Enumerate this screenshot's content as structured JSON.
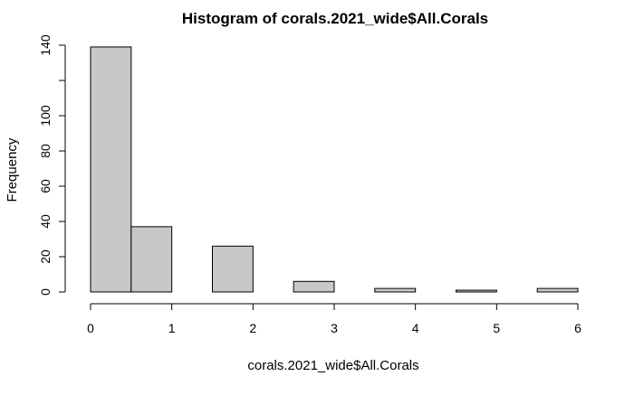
{
  "chart_data": {
    "type": "bar",
    "title": "Histogram of corals.2021_wide$All.Corals",
    "xlabel": "corals.2021_wide$All.Corals",
    "ylabel": "Frequency",
    "bins": [
      {
        "start": 0.0,
        "end": 0.5,
        "count": 139
      },
      {
        "start": 0.5,
        "end": 1.0,
        "count": 37
      },
      {
        "start": 1.0,
        "end": 1.5,
        "count": 0
      },
      {
        "start": 1.5,
        "end": 2.0,
        "count": 26
      },
      {
        "start": 2.0,
        "end": 2.5,
        "count": 0
      },
      {
        "start": 2.5,
        "end": 3.0,
        "count": 6
      },
      {
        "start": 3.0,
        "end": 3.5,
        "count": 0
      },
      {
        "start": 3.5,
        "end": 4.0,
        "count": 2
      },
      {
        "start": 4.0,
        "end": 4.5,
        "count": 0
      },
      {
        "start": 4.5,
        "end": 5.0,
        "count": 1
      },
      {
        "start": 5.0,
        "end": 5.5,
        "count": 0
      },
      {
        "start": 5.5,
        "end": 6.0,
        "count": 2
      }
    ],
    "xlim": [
      0,
      6
    ],
    "ylim": [
      0,
      140
    ],
    "xticks": [
      "0",
      "1",
      "2",
      "3",
      "4",
      "5",
      "6"
    ],
    "yticks": [
      "0",
      "20",
      "40",
      "60",
      "80",
      "100",
      "",
      "140"
    ],
    "bar_fill": "#c8c8c8",
    "bar_stroke": "#000000",
    "grid": false,
    "legend": "none"
  }
}
